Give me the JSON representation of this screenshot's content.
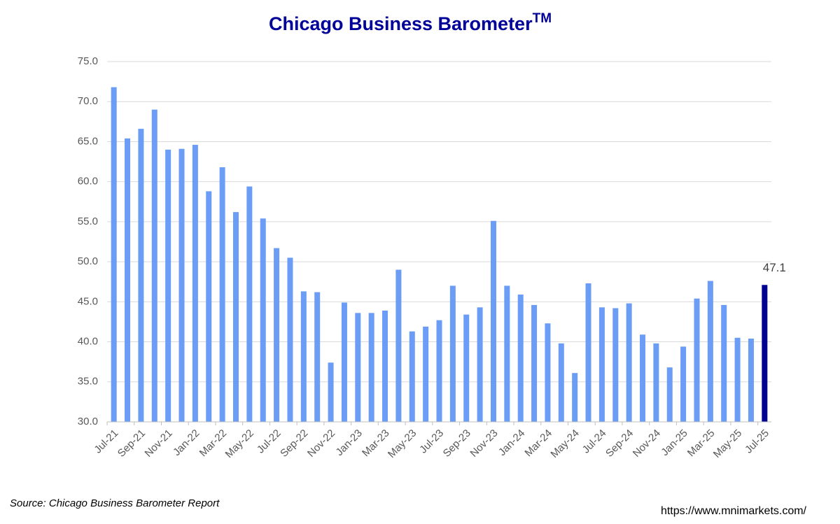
{
  "chart_data": {
    "type": "bar",
    "title": "Chicago Business Barometer",
    "title_mark": "TM",
    "source": "Source: Chicago Business Barometer Report",
    "url": "https://www.mnimarkets.com/",
    "categories": [
      "Jul-21",
      null,
      "Sep-21",
      null,
      "Nov-21",
      null,
      "Jan-22",
      null,
      "Mar-22",
      null,
      "May-22",
      null,
      "Jul-22",
      null,
      "Sep-22",
      null,
      "Nov-22",
      null,
      "Jan-23",
      null,
      "Mar-23",
      null,
      "May-23",
      null,
      "Jul-23",
      null,
      "Sep-23",
      null,
      "Nov-23",
      null,
      "Jan-24",
      null,
      "Mar-24",
      null,
      "May-24",
      null,
      "Jul-24",
      null,
      "Sep-24",
      null,
      "Nov-24",
      null,
      "Jan-25",
      null,
      "Mar-25",
      null,
      "May-25",
      null,
      "Jul-25"
    ],
    "values": [
      71.8,
      65.4,
      66.6,
      69.0,
      64.0,
      64.1,
      64.6,
      58.8,
      61.8,
      56.2,
      59.4,
      55.4,
      51.7,
      50.5,
      46.3,
      46.2,
      37.4,
      44.9,
      43.6,
      43.6,
      43.9,
      49.0,
      41.3,
      41.9,
      42.7,
      47.0,
      43.4,
      44.3,
      55.1,
      47.0,
      45.9,
      44.6,
      42.3,
      39.8,
      36.1,
      47.3,
      44.3,
      44.2,
      44.8,
      40.9,
      39.8,
      36.8,
      39.4,
      45.4,
      47.6,
      44.6,
      40.5,
      40.4,
      47.1
    ],
    "colors": [
      "#6b9cf6",
      "#6b9cf6",
      "#6b9cf6",
      "#6b9cf6",
      "#6b9cf6",
      "#6b9cf6",
      "#6b9cf6",
      "#6b9cf6",
      "#6b9cf6",
      "#6b9cf6",
      "#6b9cf6",
      "#6b9cf6",
      "#6b9cf6",
      "#6b9cf6",
      "#6b9cf6",
      "#6b9cf6",
      "#6b9cf6",
      "#6b9cf6",
      "#6b9cf6",
      "#6b9cf6",
      "#6b9cf6",
      "#6b9cf6",
      "#6b9cf6",
      "#6b9cf6",
      "#6b9cf6",
      "#6b9cf6",
      "#6b9cf6",
      "#6b9cf6",
      "#6b9cf6",
      "#6b9cf6",
      "#6b9cf6",
      "#6b9cf6",
      "#6b9cf6",
      "#6b9cf6",
      "#6b9cf6",
      "#6b9cf6",
      "#6b9cf6",
      "#6b9cf6",
      "#6b9cf6",
      "#6b9cf6",
      "#6b9cf6",
      "#6b9cf6",
      "#6b9cf6",
      "#6b9cf6",
      "#6b9cf6",
      "#6b9cf6",
      "#6b9cf6",
      "#6b9cf6",
      "#000091"
    ],
    "ylim": [
      30,
      75
    ],
    "yticks": [
      {
        "value": 30,
        "label": "30.0"
      },
      {
        "value": 35,
        "label": "35.0"
      },
      {
        "value": 40,
        "label": "40.0"
      },
      {
        "value": 45,
        "label": "45.0"
      },
      {
        "value": 50,
        "label": "50.0"
      },
      {
        "value": 55,
        "label": "55.0"
      },
      {
        "value": 60,
        "label": "60.0"
      },
      {
        "value": 65,
        "label": "65.0"
      },
      {
        "value": 70,
        "label": "70.0"
      },
      {
        "value": 75,
        "label": "75.0"
      }
    ],
    "grid": true
  }
}
